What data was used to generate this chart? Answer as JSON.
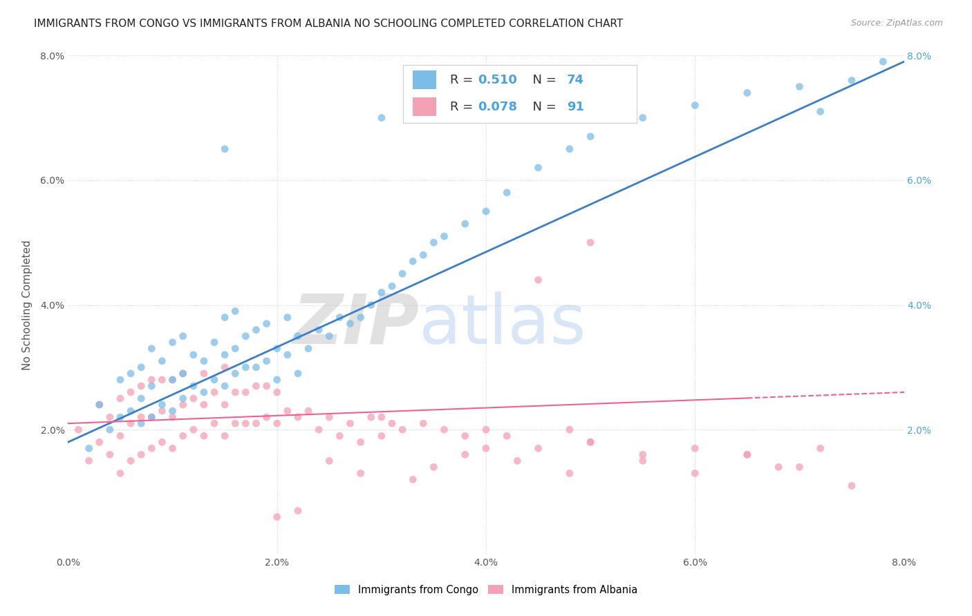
{
  "title": "IMMIGRANTS FROM CONGO VS IMMIGRANTS FROM ALBANIA NO SCHOOLING COMPLETED CORRELATION CHART",
  "source": "Source: ZipAtlas.com",
  "ylabel": "No Schooling Completed",
  "xlim": [
    0.0,
    0.08
  ],
  "ylim": [
    0.0,
    0.08
  ],
  "congo_color": "#7bbde8",
  "albania_color": "#f4a0b5",
  "congo_line_color": "#3a7ec8",
  "albania_line_color": "#f06090",
  "congo_R": "0.510",
  "congo_N": "74",
  "albania_R": "0.078",
  "albania_N": "91",
  "legend_labels": [
    "Immigrants from Congo",
    "Immigrants from Albania"
  ],
  "watermark_zip": "ZIP",
  "watermark_atlas": "atlas",
  "background_color": "#ffffff",
  "grid_color": "#c8d4e8",
  "congo_scatter_x": [
    0.002,
    0.003,
    0.004,
    0.005,
    0.005,
    0.006,
    0.006,
    0.007,
    0.007,
    0.007,
    0.008,
    0.008,
    0.008,
    0.009,
    0.009,
    0.01,
    0.01,
    0.01,
    0.011,
    0.011,
    0.011,
    0.012,
    0.012,
    0.013,
    0.013,
    0.014,
    0.014,
    0.015,
    0.015,
    0.015,
    0.016,
    0.016,
    0.016,
    0.017,
    0.017,
    0.018,
    0.018,
    0.019,
    0.019,
    0.02,
    0.02,
    0.021,
    0.021,
    0.022,
    0.022,
    0.023,
    0.024,
    0.025,
    0.026,
    0.027,
    0.028,
    0.029,
    0.03,
    0.031,
    0.032,
    0.033,
    0.034,
    0.035,
    0.036,
    0.038,
    0.04,
    0.042,
    0.045,
    0.048,
    0.05,
    0.055,
    0.06,
    0.065,
    0.07,
    0.072,
    0.075,
    0.078,
    0.015,
    0.03
  ],
  "congo_scatter_y": [
    0.017,
    0.024,
    0.02,
    0.022,
    0.028,
    0.023,
    0.029,
    0.021,
    0.025,
    0.03,
    0.022,
    0.027,
    0.033,
    0.024,
    0.031,
    0.023,
    0.028,
    0.034,
    0.025,
    0.029,
    0.035,
    0.027,
    0.032,
    0.026,
    0.031,
    0.028,
    0.034,
    0.027,
    0.032,
    0.038,
    0.029,
    0.033,
    0.039,
    0.03,
    0.035,
    0.03,
    0.036,
    0.031,
    0.037,
    0.028,
    0.033,
    0.032,
    0.038,
    0.029,
    0.035,
    0.033,
    0.036,
    0.035,
    0.038,
    0.037,
    0.038,
    0.04,
    0.042,
    0.043,
    0.045,
    0.047,
    0.048,
    0.05,
    0.051,
    0.053,
    0.055,
    0.058,
    0.062,
    0.065,
    0.067,
    0.07,
    0.072,
    0.074,
    0.075,
    0.071,
    0.076,
    0.079,
    0.065,
    0.07
  ],
  "albania_scatter_x": [
    0.001,
    0.002,
    0.003,
    0.003,
    0.004,
    0.004,
    0.005,
    0.005,
    0.005,
    0.006,
    0.006,
    0.006,
    0.007,
    0.007,
    0.007,
    0.008,
    0.008,
    0.008,
    0.009,
    0.009,
    0.009,
    0.01,
    0.01,
    0.01,
    0.011,
    0.011,
    0.011,
    0.012,
    0.012,
    0.013,
    0.013,
    0.013,
    0.014,
    0.014,
    0.015,
    0.015,
    0.015,
    0.016,
    0.016,
    0.017,
    0.017,
    0.018,
    0.018,
    0.019,
    0.019,
    0.02,
    0.02,
    0.021,
    0.022,
    0.023,
    0.024,
    0.025,
    0.026,
    0.027,
    0.028,
    0.029,
    0.03,
    0.031,
    0.032,
    0.034,
    0.036,
    0.038,
    0.04,
    0.042,
    0.045,
    0.048,
    0.05,
    0.055,
    0.06,
    0.065,
    0.07,
    0.045,
    0.033,
    0.038,
    0.025,
    0.028,
    0.022,
    0.035,
    0.04,
    0.043,
    0.048,
    0.05,
    0.055,
    0.06,
    0.065,
    0.068,
    0.072,
    0.075,
    0.05,
    0.03,
    0.02
  ],
  "albania_scatter_y": [
    0.02,
    0.015,
    0.018,
    0.024,
    0.016,
    0.022,
    0.013,
    0.019,
    0.025,
    0.015,
    0.021,
    0.026,
    0.016,
    0.022,
    0.027,
    0.017,
    0.022,
    0.028,
    0.018,
    0.023,
    0.028,
    0.017,
    0.022,
    0.028,
    0.019,
    0.024,
    0.029,
    0.02,
    0.025,
    0.019,
    0.024,
    0.029,
    0.021,
    0.026,
    0.019,
    0.024,
    0.03,
    0.021,
    0.026,
    0.021,
    0.026,
    0.021,
    0.027,
    0.022,
    0.027,
    0.021,
    0.026,
    0.023,
    0.022,
    0.023,
    0.02,
    0.022,
    0.019,
    0.021,
    0.018,
    0.022,
    0.022,
    0.021,
    0.02,
    0.021,
    0.02,
    0.019,
    0.02,
    0.019,
    0.017,
    0.02,
    0.018,
    0.016,
    0.017,
    0.016,
    0.014,
    0.044,
    0.012,
    0.016,
    0.015,
    0.013,
    0.007,
    0.014,
    0.017,
    0.015,
    0.013,
    0.018,
    0.015,
    0.013,
    0.016,
    0.014,
    0.017,
    0.011,
    0.05,
    0.019,
    0.006
  ]
}
